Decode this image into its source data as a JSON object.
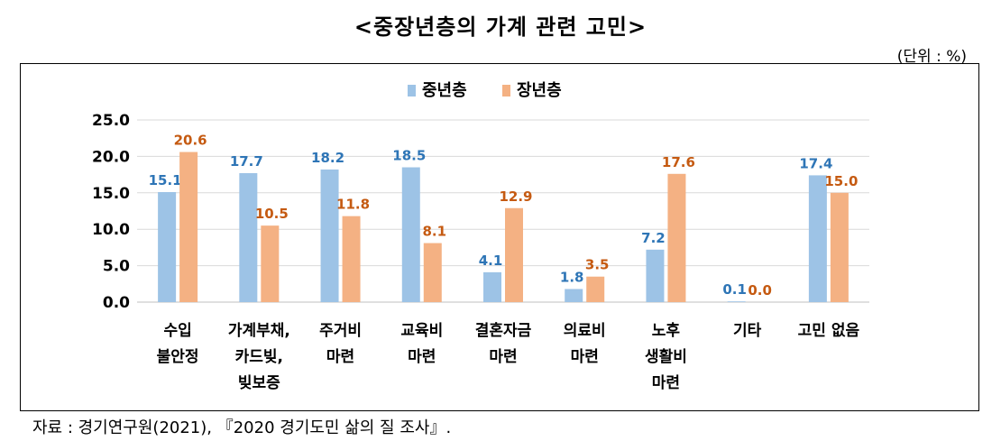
{
  "title": "<중장년층의 가계 관련 고민>",
  "unit_label": "(단위 : %)",
  "source": "자료 : 경기연구원(2021), 『2020 경기도민 삶의 질 조사』.",
  "colors": {
    "series1": "#9dc3e6",
    "series2": "#f4b183",
    "label1": "#2e75b6",
    "label2": "#c55a11",
    "axis": "#000000",
    "grid": "#d9d9d9"
  },
  "chart_data": {
    "type": "bar",
    "title": "<중장년층의 가계 관련 고민>",
    "ylim": [
      0,
      25
    ],
    "yticks": [
      "0.0",
      "5.0",
      "10.0",
      "15.0",
      "20.0",
      "25.0"
    ],
    "ytick_values": [
      0,
      5,
      10,
      15,
      20,
      25
    ],
    "grid": true,
    "legend": "top-center",
    "categories": [
      [
        "수입",
        "불안정"
      ],
      [
        "가계부채,",
        "카드빚,",
        "빚보증"
      ],
      [
        "주거비",
        "마련"
      ],
      [
        "교육비",
        "마련"
      ],
      [
        "결혼자금",
        "마련"
      ],
      [
        "의료비",
        "마련"
      ],
      [
        "노후",
        "생활비",
        "마련"
      ],
      [
        "기타"
      ],
      [
        "고민 없음"
      ]
    ],
    "series": [
      {
        "name": "중년층",
        "values": [
          15.1,
          17.7,
          18.2,
          18.5,
          4.1,
          1.8,
          7.2,
          0.1,
          17.4
        ],
        "labels": [
          "15.1",
          "17.7",
          "18.2",
          "18.5",
          "4.1",
          "1.8",
          "7.2",
          "0.1",
          "17.4"
        ]
      },
      {
        "name": "장년층",
        "values": [
          20.6,
          10.5,
          11.8,
          8.1,
          12.9,
          3.5,
          17.6,
          0.0,
          15.0
        ],
        "labels": [
          "20.6",
          "10.5",
          "11.8",
          "8.1",
          "12.9",
          "3.5",
          "17.6",
          "0.0",
          "15.0"
        ]
      }
    ]
  }
}
